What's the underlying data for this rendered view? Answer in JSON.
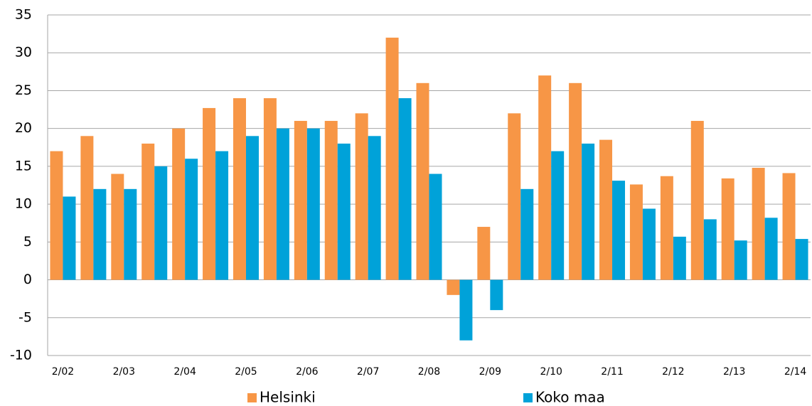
{
  "chart_data": {
    "type": "bar",
    "categories": [
      "2/02",
      null,
      "2/03",
      null,
      "2/04",
      null,
      "2/05",
      null,
      "2/06",
      null,
      "2/07",
      null,
      "2/08",
      null,
      "2/09",
      null,
      "2/10",
      null,
      "2/11",
      null,
      "2/12",
      null,
      "2/13",
      null,
      "2/14"
    ],
    "series": [
      {
        "name": "Helsinki",
        "color": "#f79646",
        "values": [
          17,
          19,
          14,
          18,
          20,
          22.7,
          24,
          24,
          21,
          21,
          22,
          32,
          26,
          -2,
          7,
          22,
          27,
          26,
          18.5,
          12.6,
          13.7,
          21,
          13.4,
          14.8,
          14.1
        ]
      },
      {
        "name": "Koko maa",
        "color": "#00a2d9",
        "values": [
          11,
          12,
          12,
          15,
          16,
          17,
          19,
          20,
          20,
          18,
          19,
          24,
          14,
          -8,
          -4,
          12,
          17,
          18,
          13.1,
          9.4,
          5.7,
          8,
          5.2,
          8.2,
          5.4
        ]
      }
    ],
    "ylim": [
      -10,
      35
    ],
    "yticks": [
      -10,
      -5,
      0,
      5,
      10,
      15,
      20,
      25,
      30,
      35
    ],
    "grid": true,
    "legend": "bottom"
  }
}
